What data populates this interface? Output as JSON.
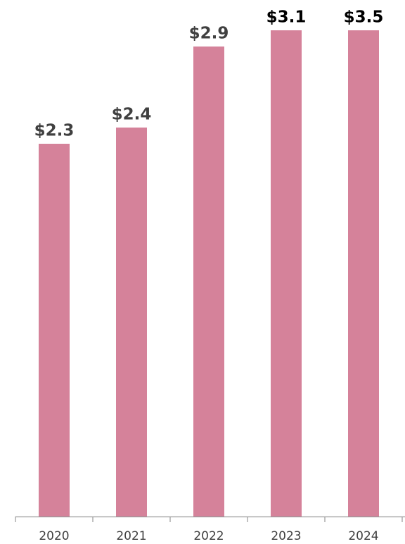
{
  "chart_data": {
    "type": "bar",
    "categories": [
      "2020",
      "2021",
      "2022",
      "2023",
      "2024"
    ],
    "values": [
      2.3,
      2.4,
      2.9,
      3.1,
      3.5
    ],
    "value_labels": [
      "$2.3",
      "$2.4",
      "$2.9",
      "$3.1",
      "$3.5"
    ],
    "value_label_colors": [
      "#404040",
      "#404040",
      "#404040",
      "#000000",
      "#000000"
    ],
    "color": "#d5829a",
    "ylim": [
      0,
      3
    ]
  }
}
